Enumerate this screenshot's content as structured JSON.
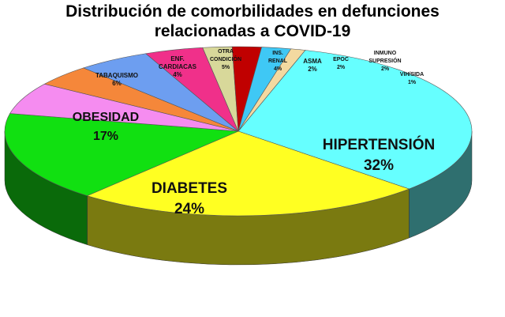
{
  "chart_data": {
    "type": "pie",
    "title_line1": "Distribución de comorbilidades en defunciones",
    "title_line2": "relacionadas a COVID-19",
    "slices": [
      {
        "label": "HIPERTENSIÓN",
        "value": 32,
        "pct_label": "32%",
        "color": "#66FFFF",
        "side": "#2F6F6F"
      },
      {
        "label": "DIABETES",
        "value": 24,
        "pct_label": "24%",
        "color": "#FFFF22",
        "side": "#7A7A10"
      },
      {
        "label": "OBESIDAD",
        "value": 17,
        "pct_label": "17%",
        "color": "#11E011",
        "side": "#0A6A0A"
      },
      {
        "label": "TABAQUISMO",
        "value": 6,
        "pct_label": "6%",
        "color": "#F58CF0",
        "side": "#7A447A"
      },
      {
        "label": "ENF. CARDIACAS",
        "value": 4,
        "pct_label": "4%",
        "color": "#F5873A",
        "side": "#7A431C"
      },
      {
        "label": "OTRA CONDICIÓN",
        "value": 5,
        "pct_label": "5%",
        "color": "#6D9EF0",
        "side": "#364F7A"
      },
      {
        "label": "INS. RENAL",
        "value": 4,
        "pct_label": "4%",
        "color": "#F0308A",
        "side": "#781845"
      },
      {
        "label": "ASMA",
        "value": 2,
        "pct_label": "2%",
        "color": "#D8D89A",
        "side": "#6C6C4D"
      },
      {
        "label": "EPOC",
        "value": 2,
        "pct_label": "2%",
        "color": "#C00000",
        "side": "#600000"
      },
      {
        "label": "INMUNO SUPRESIÓN",
        "value": 2,
        "pct_label": "2%",
        "color": "#3FC8F5",
        "side": "#1F647A"
      },
      {
        "label": "VIH/SIDA",
        "value": 1,
        "pct_label": "1%",
        "color": "#F3D9A0",
        "side": "#796C50"
      }
    ]
  }
}
